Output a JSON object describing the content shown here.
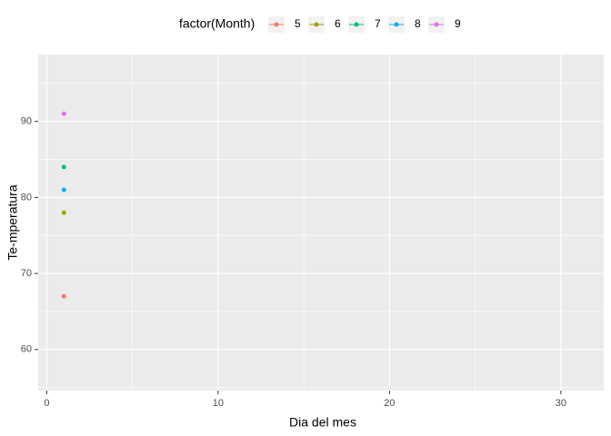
{
  "chart_data": {
    "type": "line",
    "x_label": "Dia del mes",
    "y_label": "Te-mperatura",
    "legend_title": "factor(Month)",
    "legend_position": "top",
    "series": [
      {
        "name": "5",
        "color": "#F8766D",
        "x": [
          1
        ],
        "values": [
          67
        ]
      },
      {
        "name": "6",
        "color": "#A3A500",
        "x": [
          1
        ],
        "values": [
          78
        ]
      },
      {
        "name": "7",
        "color": "#00BF7D",
        "x": [
          1
        ],
        "values": [
          84
        ]
      },
      {
        "name": "8",
        "color": "#00B0F6",
        "x": [
          1
        ],
        "values": [
          81
        ]
      },
      {
        "name": "9",
        "color": "#E76BF3",
        "x": [
          1
        ],
        "values": [
          91
        ]
      }
    ],
    "xlim": [
      -0.5,
      32.5
    ],
    "xticks": [
      0,
      10,
      20,
      30
    ],
    "ylim": [
      54.6,
      98.8
    ],
    "yticks": [
      60,
      70,
      80,
      90
    ],
    "grid": true
  }
}
